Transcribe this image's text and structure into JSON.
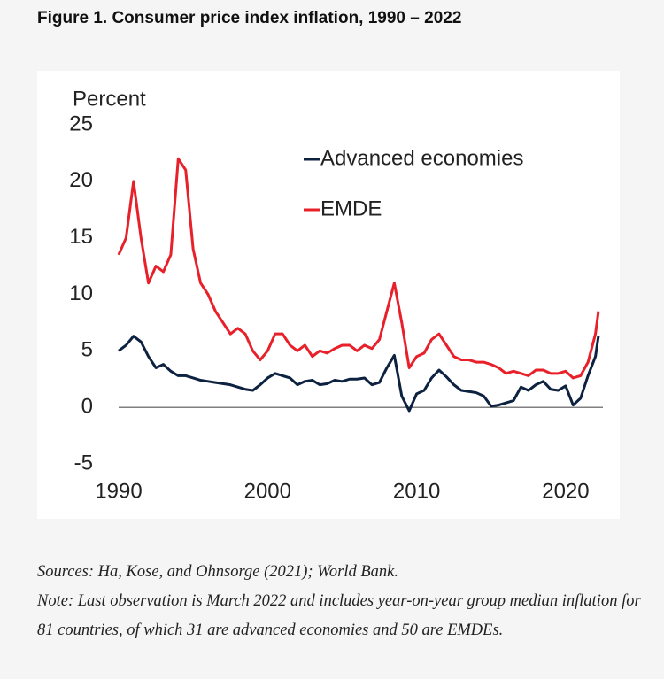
{
  "chart_data": {
    "type": "line",
    "title": "Figure 1. Consumer price index inflation, 1990 – 2022",
    "y_label": "Percent",
    "x": [
      1990,
      1990.5,
      1991,
      1991.5,
      1992,
      1992.5,
      1993,
      1993.5,
      1994,
      1994.5,
      1995,
      1995.5,
      1996,
      1996.5,
      1997,
      1997.5,
      1998,
      1998.5,
      1999,
      1999.5,
      2000,
      2000.5,
      2001,
      2001.5,
      2002,
      2002.5,
      2003,
      2003.5,
      2004,
      2004.5,
      2005,
      2005.5,
      2006,
      2006.5,
      2007,
      2007.5,
      2008,
      2008.5,
      2009,
      2009.5,
      2010,
      2010.5,
      2011,
      2011.5,
      2012,
      2012.5,
      2013,
      2013.5,
      2014,
      2014.5,
      2015,
      2015.5,
      2016,
      2016.5,
      2017,
      2017.5,
      2018,
      2018.5,
      2019,
      2019.5,
      2020,
      2020.5,
      2021,
      2021.5,
      2022,
      2022.2
    ],
    "series": [
      {
        "name": "Advanced economies",
        "color": "#0d2240",
        "values": [
          5,
          5.5,
          6.3,
          5.8,
          4.5,
          3.5,
          3.8,
          3.2,
          2.8,
          2.8,
          2.6,
          2.4,
          2.3,
          2.2,
          2.1,
          2.0,
          1.8,
          1.6,
          1.5,
          2.0,
          2.6,
          3.0,
          2.8,
          2.6,
          2.0,
          2.3,
          2.4,
          2.0,
          2.1,
          2.4,
          2.3,
          2.5,
          2.5,
          2.6,
          2.0,
          2.2,
          3.5,
          4.6,
          1.0,
          -0.3,
          1.2,
          1.5,
          2.6,
          3.3,
          2.7,
          2.0,
          1.5,
          1.4,
          1.3,
          1.0,
          0.1,
          0.2,
          0.4,
          0.6,
          1.8,
          1.5,
          2.0,
          2.3,
          1.6,
          1.5,
          1.9,
          0.2,
          0.8,
          2.8,
          4.5,
          6.3
        ]
      },
      {
        "name": "EMDE",
        "color": "#e8202a",
        "values": [
          13.5,
          15,
          20,
          15,
          11,
          12.5,
          12,
          13.5,
          22,
          21,
          14,
          11,
          10,
          8.5,
          7.5,
          6.5,
          7,
          6.5,
          5,
          4.2,
          5,
          6.5,
          6.5,
          5.5,
          5,
          5.5,
          4.5,
          5,
          4.8,
          5.2,
          5.5,
          5.5,
          5,
          5.5,
          5.2,
          6,
          8.5,
          11,
          7.5,
          3.5,
          4.5,
          4.8,
          6,
          6.5,
          5.5,
          4.5,
          4.2,
          4.2,
          4.0,
          4.0,
          3.8,
          3.5,
          3.0,
          3.2,
          3.0,
          2.8,
          3.3,
          3.3,
          3.0,
          3.0,
          3.2,
          2.6,
          2.8,
          4.0,
          6.5,
          8.5
        ]
      }
    ],
    "xlim": [
      1990,
      2022.5
    ],
    "xticks": [
      1990,
      2000,
      2010,
      2020
    ],
    "ylim": [
      -5,
      25
    ],
    "yticks": [
      -5,
      0,
      5,
      10,
      15,
      20,
      25
    ],
    "legend": "upper right"
  },
  "sources": "Sources: Ha, Kose, and Ohnsorge (2021); World Bank.",
  "note": "Note: Last observation is March 2022 and includes year-on-year group median inflation for 81 countries, of which 31 are advanced economies and 50 are EMDEs."
}
